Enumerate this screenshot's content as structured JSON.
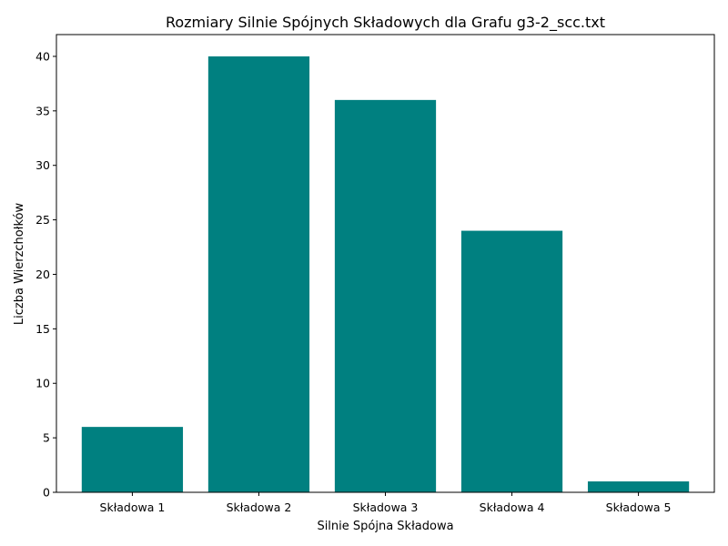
{
  "chart_data": {
    "type": "bar",
    "title": "Rozmiary Silnie Spójnych Składowych dla Grafu g3-2_scc.txt",
    "xlabel": "Silnie Spójna Składowa",
    "ylabel": "Liczba Wierzchołków",
    "categories": [
      "Składowa 1",
      "Składowa 2",
      "Składowa 3",
      "Składowa 4",
      "Składowa 5"
    ],
    "values": [
      6,
      40,
      36,
      24,
      1
    ],
    "ylim": [
      0,
      42
    ],
    "yticks": [
      0,
      5,
      10,
      15,
      20,
      25,
      30,
      35,
      40
    ],
    "ytick_labels": [
      "0",
      "5",
      "10",
      "15",
      "20",
      "25",
      "30",
      "35",
      "40"
    ],
    "bar_color": "#008080",
    "grid": false,
    "legend": "none"
  }
}
